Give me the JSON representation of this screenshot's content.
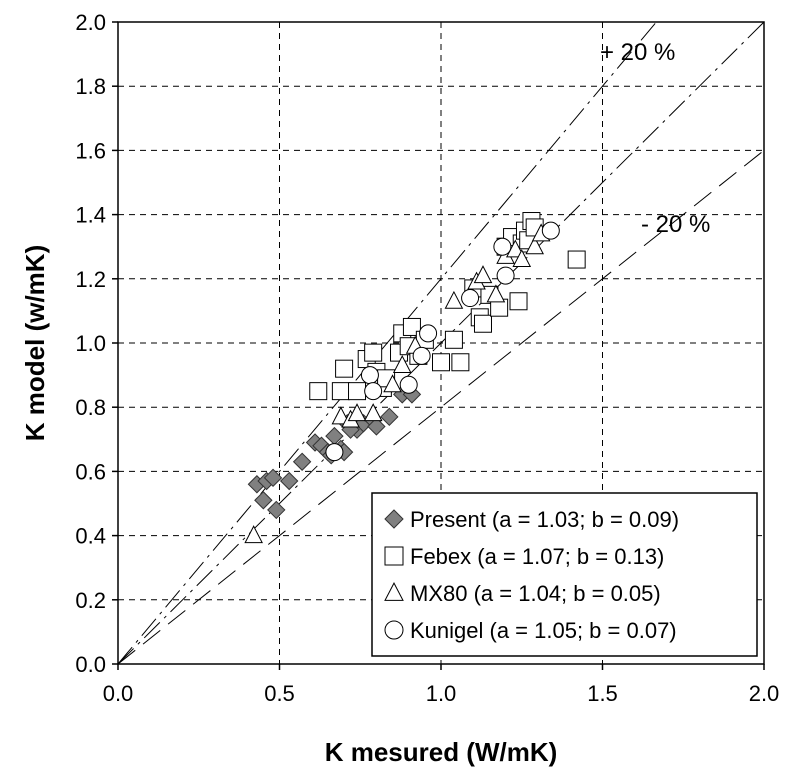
{
  "chart_data": {
    "type": "scatter",
    "title": "",
    "xlabel": "K mesured (W/mK)",
    "ylabel": "K model (w/mK)",
    "xlim": [
      0,
      2
    ],
    "ylim": [
      0,
      2
    ],
    "xticks": [
      "0.0",
      "0.5",
      "1.0",
      "1.5",
      "2.0"
    ],
    "yticks": [
      "0.0",
      "0.2",
      "0.4",
      "0.6",
      "0.8",
      "1.0",
      "1.2",
      "1.4",
      "1.6",
      "1.8",
      "2.0"
    ],
    "grid": true,
    "legend_position": "bottom-right",
    "annotations": [
      {
        "text": "+ 20 %",
        "x": 1.77,
        "y": 1.9
      },
      {
        "text": "- 20 %",
        "x": 1.77,
        "y": 1.46
      }
    ],
    "reference_lines": [
      {
        "label": "1:1",
        "slope": 1.0
      },
      {
        "label": "+ 20 %",
        "slope": 1.2
      },
      {
        "label": "- 20 %",
        "slope": 0.8
      }
    ],
    "series": [
      {
        "name": "Present (a = 1.03; b = 0.09)",
        "marker": "diamond",
        "color": "#808080",
        "points": [
          [
            0.43,
            0.56
          ],
          [
            0.45,
            0.51
          ],
          [
            0.46,
            0.57
          ],
          [
            0.48,
            0.58
          ],
          [
            0.49,
            0.48
          ],
          [
            0.53,
            0.57
          ],
          [
            0.57,
            0.63
          ],
          [
            0.61,
            0.69
          ],
          [
            0.63,
            0.68
          ],
          [
            0.65,
            0.66
          ],
          [
            0.67,
            0.71
          ],
          [
            0.69,
            0.67
          ],
          [
            0.7,
            0.66
          ],
          [
            0.71,
            0.75
          ],
          [
            0.74,
            0.73
          ],
          [
            0.76,
            0.75
          ],
          [
            0.79,
            0.76
          ],
          [
            0.8,
            0.74
          ],
          [
            0.84,
            0.77
          ],
          [
            0.88,
            0.84
          ],
          [
            0.91,
            0.84
          ],
          [
            0.72,
            0.73
          ],
          [
            0.66,
            0.65
          ]
        ]
      },
      {
        "name": "Febex (a = 1.07; b = 0.13)",
        "marker": "square",
        "color": "#ffffff",
        "points": [
          [
            0.62,
            0.85
          ],
          [
            0.69,
            0.85
          ],
          [
            0.7,
            0.92
          ],
          [
            0.74,
            0.85
          ],
          [
            0.77,
            0.95
          ],
          [
            0.79,
            0.97
          ],
          [
            0.8,
            0.91
          ],
          [
            0.82,
            0.86
          ],
          [
            0.87,
            0.97
          ],
          [
            0.88,
            1.03
          ],
          [
            0.9,
            0.99
          ],
          [
            0.91,
            1.05
          ],
          [
            0.93,
            0.96
          ],
          [
            0.95,
            1.01
          ],
          [
            1.04,
            1.01
          ],
          [
            1.06,
            0.94
          ],
          [
            1.1,
            1.17
          ],
          [
            1.12,
            1.08
          ],
          [
            1.13,
            1.06
          ],
          [
            1.15,
            1.15
          ],
          [
            1.18,
            1.11
          ],
          [
            1.2,
            1.3
          ],
          [
            1.22,
            1.33
          ],
          [
            1.24,
            1.13
          ],
          [
            1.25,
            1.31
          ],
          [
            1.26,
            1.35
          ],
          [
            1.27,
            1.32
          ],
          [
            1.28,
            1.38
          ],
          [
            1.29,
            1.36
          ],
          [
            1.42,
            1.26
          ],
          [
            0.83,
            0.89
          ],
          [
            1.0,
            0.94
          ]
        ]
      },
      {
        "name": "MX80 (a = 1.04; b = 0.05)",
        "marker": "triangle",
        "color": "#ffffff",
        "points": [
          [
            0.42,
            0.4
          ],
          [
            0.69,
            0.77
          ],
          [
            0.72,
            0.76
          ],
          [
            0.74,
            0.78
          ],
          [
            0.79,
            0.78
          ],
          [
            0.85,
            0.87
          ],
          [
            0.88,
            0.93
          ],
          [
            0.92,
            0.99
          ],
          [
            1.04,
            1.13
          ],
          [
            1.11,
            1.19
          ],
          [
            1.13,
            1.21
          ],
          [
            1.17,
            1.15
          ],
          [
            1.2,
            1.27
          ],
          [
            1.23,
            1.29
          ],
          [
            1.25,
            1.26
          ],
          [
            1.29,
            1.3
          ],
          [
            1.31,
            1.34
          ]
        ]
      },
      {
        "name": "Kunigel (a = 1.05; b = 0.07)",
        "marker": "circle",
        "color": "#ffffff",
        "points": [
          [
            0.67,
            0.66
          ],
          [
            0.78,
            0.9
          ],
          [
            0.79,
            0.85
          ],
          [
            0.9,
            0.87
          ],
          [
            0.94,
            0.96
          ],
          [
            0.96,
            1.03
          ],
          [
            1.09,
            1.14
          ],
          [
            1.19,
            1.3
          ],
          [
            1.2,
            1.21
          ],
          [
            1.34,
            1.35
          ]
        ]
      }
    ]
  }
}
